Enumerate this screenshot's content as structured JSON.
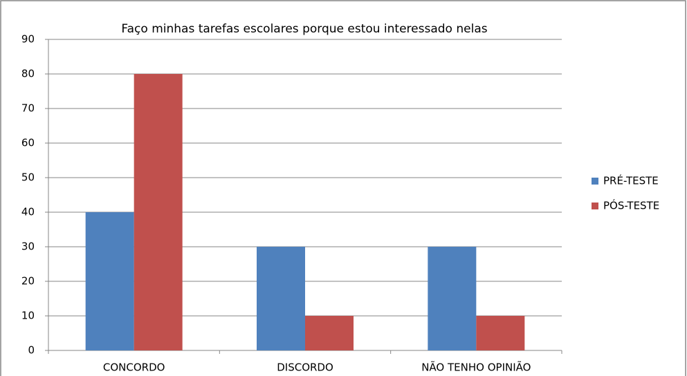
{
  "chart_data": {
    "type": "bar",
    "title": "Faço minhas tarefas escolares porque estou interessado nelas",
    "categories": [
      "CONCORDO",
      "DISCORDO",
      "NÃO TENHO OPINIÃO"
    ],
    "series": [
      {
        "name": "PRÉ-TESTE",
        "color": "#4f81bd",
        "values": [
          40,
          30,
          30
        ]
      },
      {
        "name": "PÓS-TESTE",
        "color": "#c0504d",
        "values": [
          80,
          10,
          10
        ]
      }
    ],
    "ylim": [
      0,
      90
    ],
    "yticks": [
      0,
      10,
      20,
      30,
      40,
      50,
      60,
      70,
      80,
      90
    ],
    "grid": true,
    "legend": "right"
  }
}
